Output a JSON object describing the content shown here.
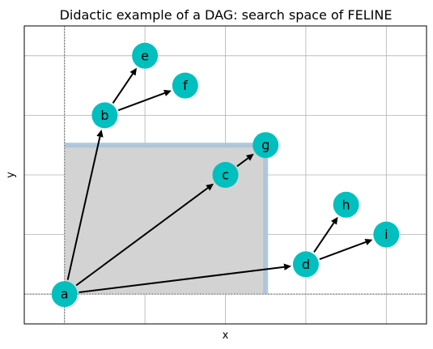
{
  "chart_data": {
    "type": "scatter",
    "title": "Didactic example of a DAG: search space of FELINE",
    "xlabel": "x",
    "ylabel": "y",
    "xlim": [
      -0.5,
      4.5
    ],
    "ylim": [
      -0.5,
      4.5
    ],
    "x_gridlines": [
      0,
      1,
      2,
      3,
      4
    ],
    "y_gridlines": [
      0,
      1,
      2,
      3,
      4
    ],
    "grid": true,
    "tick_labels_shown": false,
    "nodes": [
      {
        "label": "a",
        "x": 0.0,
        "y": 0.0
      },
      {
        "label": "b",
        "x": 0.5,
        "y": 3.0
      },
      {
        "label": "c",
        "x": 2.0,
        "y": 2.0
      },
      {
        "label": "d",
        "x": 3.0,
        "y": 0.5
      },
      {
        "label": "e",
        "x": 1.0,
        "y": 4.0
      },
      {
        "label": "f",
        "x": 1.5,
        "y": 3.5
      },
      {
        "label": "g",
        "x": 2.5,
        "y": 2.5
      },
      {
        "label": "h",
        "x": 3.5,
        "y": 1.5
      },
      {
        "label": "i",
        "x": 4.0,
        "y": 1.0
      }
    ],
    "edges": [
      [
        "a",
        "b"
      ],
      [
        "a",
        "c"
      ],
      [
        "a",
        "d"
      ],
      [
        "b",
        "e"
      ],
      [
        "b",
        "f"
      ],
      [
        "c",
        "g"
      ],
      [
        "d",
        "h"
      ],
      [
        "d",
        "i"
      ]
    ],
    "dotted_reference_lines": {
      "x": 0.0,
      "y": 0.0
    },
    "search_region": {
      "x0": 0.0,
      "y0": 0.0,
      "x1": 2.5,
      "y1": 2.5
    },
    "colors": {
      "node_fill": "#00bfbf",
      "edge": "#000000",
      "region_fill": "#d3d3d3",
      "region_edge": "#a9c3d9",
      "grid": "#b0b0b0",
      "reference_line": "#808080"
    }
  }
}
